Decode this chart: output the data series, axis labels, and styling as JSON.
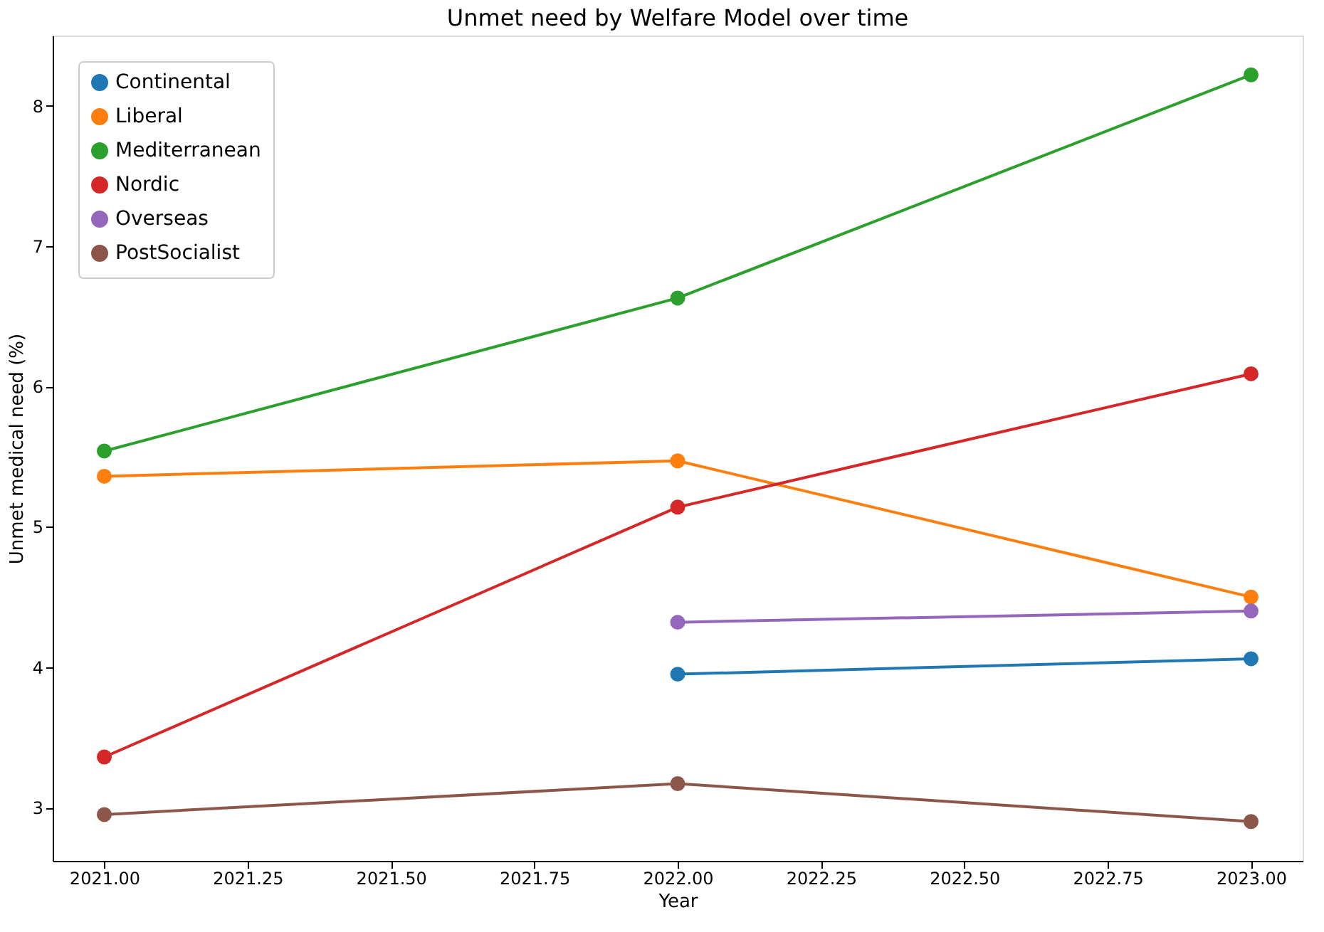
{
  "chart_data": {
    "type": "line",
    "title": "Unmet need by Welfare Model over time",
    "xlabel": "Year",
    "ylabel": "Unmet medical need (%)",
    "x": [
      2021,
      2022,
      2023
    ],
    "series": [
      {
        "name": "Continental",
        "color": "#1f77b4",
        "values": [
          null,
          3.95,
          4.06
        ]
      },
      {
        "name": "Liberal",
        "color": "#ff7f0e",
        "values": [
          5.36,
          5.47,
          4.5
        ]
      },
      {
        "name": "Mediterranean",
        "color": "#2ca02c",
        "values": [
          5.54,
          6.63,
          8.22
        ]
      },
      {
        "name": "Nordic",
        "color": "#d62728",
        "values": [
          3.36,
          5.14,
          6.09
        ]
      },
      {
        "name": "Overseas",
        "color": "#9467bd",
        "values": [
          null,
          4.32,
          4.4
        ]
      },
      {
        "name": "PostSocialist",
        "color": "#8c564b",
        "values": [
          2.95,
          3.17,
          2.9
        ]
      }
    ],
    "xlim": [
      2020.91,
      2023.09
    ],
    "ylim": [
      2.62,
      8.5
    ],
    "xticks": [
      {
        "value": 2021,
        "label": "2021.00"
      },
      {
        "value": 2021.25,
        "label": "2021.25"
      },
      {
        "value": 2021.5,
        "label": "2021.50"
      },
      {
        "value": 2021.75,
        "label": "2021.75"
      },
      {
        "value": 2022,
        "label": "2022.00"
      },
      {
        "value": 2022.25,
        "label": "2022.25"
      },
      {
        "value": 2022.5,
        "label": "2022.50"
      },
      {
        "value": 2022.75,
        "label": "2022.75"
      },
      {
        "value": 2023,
        "label": "2023.00"
      }
    ],
    "yticks": [
      3,
      4,
      5,
      6,
      7,
      8
    ],
    "grid": false,
    "legend": "top left",
    "marker": "circle",
    "line_style": "solid"
  }
}
